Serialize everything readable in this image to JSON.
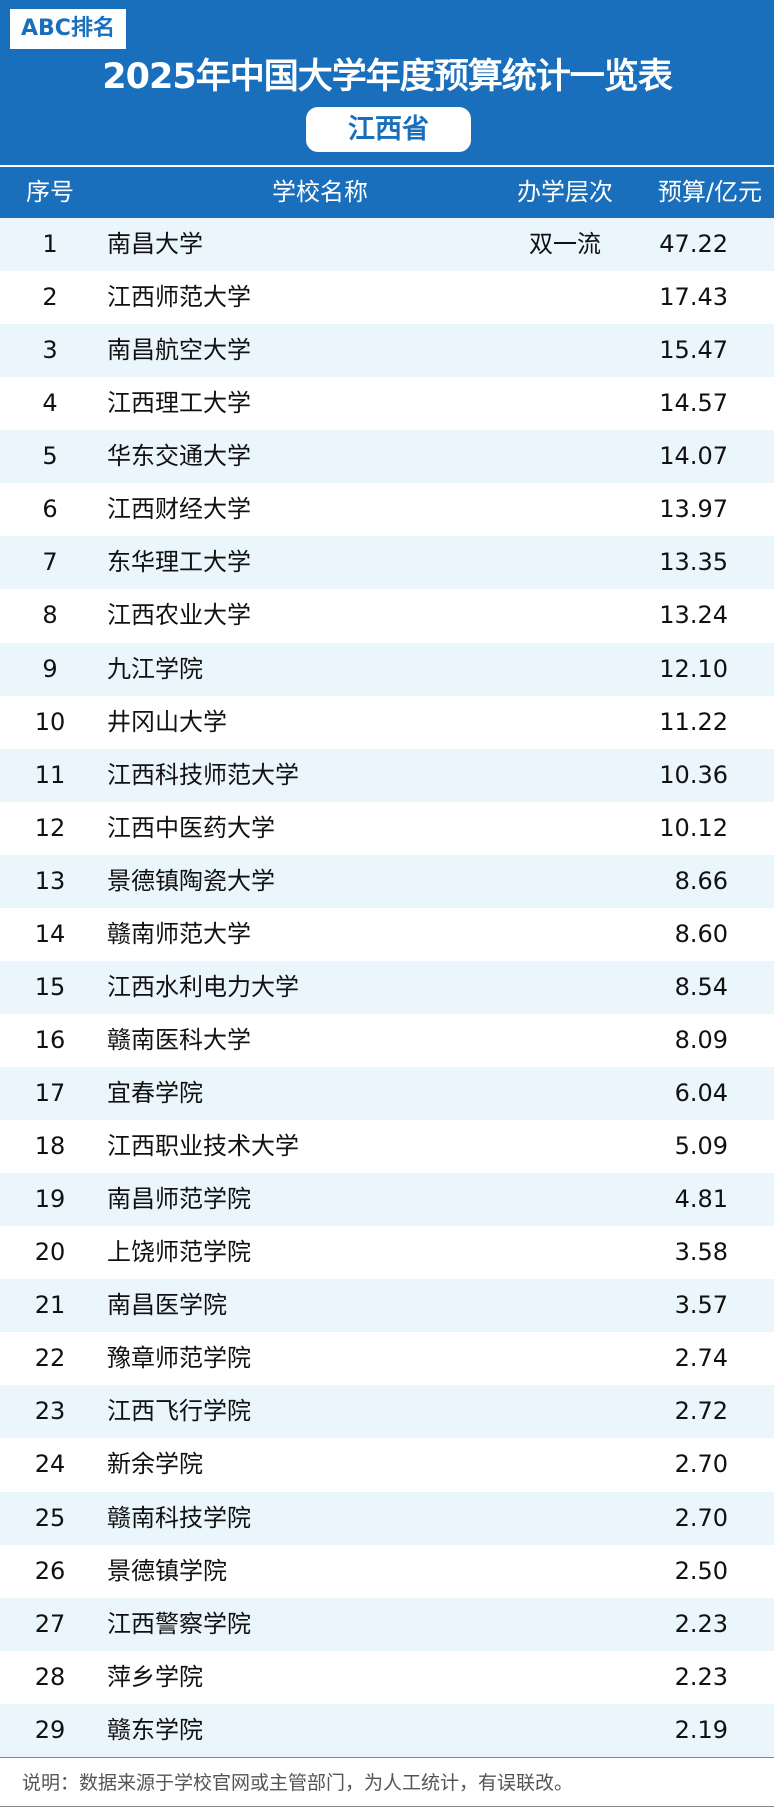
{
  "header": {
    "badge": "ABC排名",
    "title": "2025年中国大学年度预算统计一览表",
    "province": "江西省",
    "brand_color": "#1a6fbd"
  },
  "columns": {
    "index": "序号",
    "name": "学校名称",
    "level": "办学层次",
    "budget": "预算/亿元"
  },
  "rows": [
    {
      "index": "1",
      "name": "南昌大学",
      "level": "双一流",
      "budget": "47.22"
    },
    {
      "index": "2",
      "name": "江西师范大学",
      "level": "",
      "budget": "17.43"
    },
    {
      "index": "3",
      "name": "南昌航空大学",
      "level": "",
      "budget": "15.47"
    },
    {
      "index": "4",
      "name": "江西理工大学",
      "level": "",
      "budget": "14.57"
    },
    {
      "index": "5",
      "name": "华东交通大学",
      "level": "",
      "budget": "14.07"
    },
    {
      "index": "6",
      "name": "江西财经大学",
      "level": "",
      "budget": "13.97"
    },
    {
      "index": "7",
      "name": "东华理工大学",
      "level": "",
      "budget": "13.35"
    },
    {
      "index": "8",
      "name": "江西农业大学",
      "level": "",
      "budget": "13.24"
    },
    {
      "index": "9",
      "name": "九江学院",
      "level": "",
      "budget": "12.10"
    },
    {
      "index": "10",
      "name": "井冈山大学",
      "level": "",
      "budget": "11.22"
    },
    {
      "index": "11",
      "name": "江西科技师范大学",
      "level": "",
      "budget": "10.36"
    },
    {
      "index": "12",
      "name": "江西中医药大学",
      "level": "",
      "budget": "10.12"
    },
    {
      "index": "13",
      "name": "景德镇陶瓷大学",
      "level": "",
      "budget": "8.66"
    },
    {
      "index": "14",
      "name": "赣南师范大学",
      "level": "",
      "budget": "8.60"
    },
    {
      "index": "15",
      "name": "江西水利电力大学",
      "level": "",
      "budget": "8.54"
    },
    {
      "index": "16",
      "name": "赣南医科大学",
      "level": "",
      "budget": "8.09"
    },
    {
      "index": "17",
      "name": "宜春学院",
      "level": "",
      "budget": "6.04"
    },
    {
      "index": "18",
      "name": "江西职业技术大学",
      "level": "",
      "budget": "5.09"
    },
    {
      "index": "19",
      "name": "南昌师范学院",
      "level": "",
      "budget": "4.81"
    },
    {
      "index": "20",
      "name": "上饶师范学院",
      "level": "",
      "budget": "3.58"
    },
    {
      "index": "21",
      "name": "南昌医学院",
      "level": "",
      "budget": "3.57"
    },
    {
      "index": "22",
      "name": "豫章师范学院",
      "level": "",
      "budget": "2.74"
    },
    {
      "index": "23",
      "name": "江西飞行学院",
      "level": "",
      "budget": "2.72"
    },
    {
      "index": "24",
      "name": "新余学院",
      "level": "",
      "budget": "2.70"
    },
    {
      "index": "25",
      "name": "赣南科技学院",
      "level": "",
      "budget": "2.70"
    },
    {
      "index": "26",
      "name": "景德镇学院",
      "level": "",
      "budget": "2.50"
    },
    {
      "index": "27",
      "name": "江西警察学院",
      "level": "",
      "budget": "2.23"
    },
    {
      "index": "28",
      "name": "萍乡学院",
      "level": "",
      "budget": "2.23"
    },
    {
      "index": "29",
      "name": "赣东学院",
      "level": "",
      "budget": "2.19"
    }
  ],
  "footer": {
    "note": "说明：数据来源于学校官网或主管部门，为人工统计，有误联改。"
  }
}
